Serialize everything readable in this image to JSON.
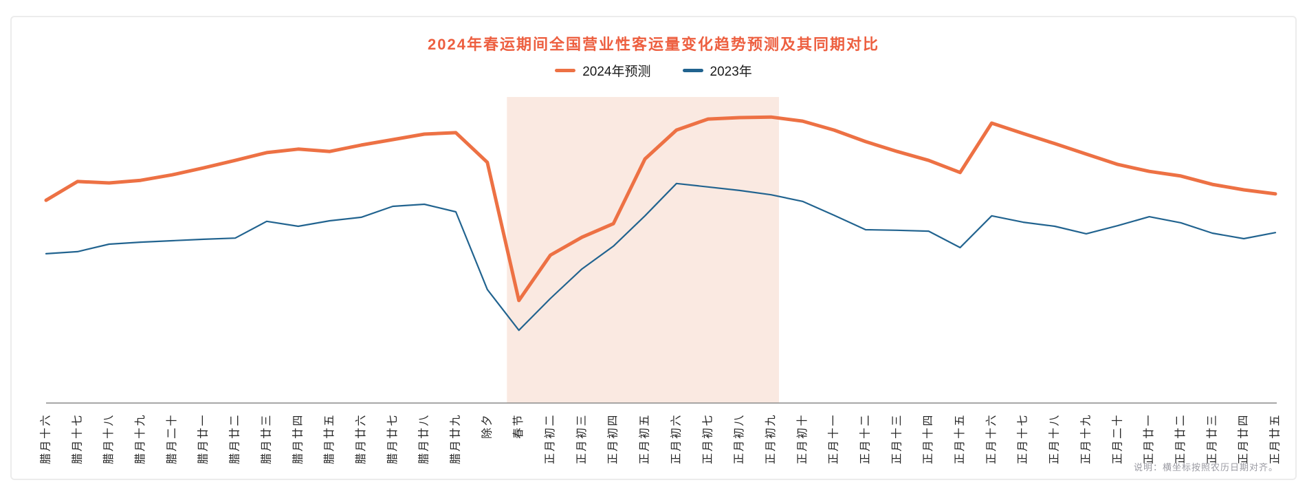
{
  "page": {
    "card_background": "#ffffff",
    "card_border_color": "#ececec"
  },
  "chart_data": {
    "type": "line",
    "title": "2024年春运期间全国营业性客运量变化趋势预测及其同期对比",
    "title_color": "#ed5f40",
    "legend_position": "top",
    "grid": false,
    "categories": [
      "腊月十六",
      "腊月十七",
      "腊月十八",
      "腊月十九",
      "腊月二十",
      "腊月廿一",
      "腊月廿二",
      "腊月廿三",
      "腊月廿四",
      "腊月廿五",
      "腊月廿六",
      "腊月廿七",
      "腊月廿八",
      "腊月廿九",
      "除夕",
      "春节",
      "正月初二",
      "正月初三",
      "正月初四",
      "正月初五",
      "正月初六",
      "正月初七",
      "正月初八",
      "正月初九",
      "正月初十",
      "正月十一",
      "正月十二",
      "正月十三",
      "正月十四",
      "正月十五",
      "正月十六",
      "正月十七",
      "正月十八",
      "正月十九",
      "正月二十",
      "正月廿一",
      "正月廿二",
      "正月廿三",
      "正月廿四",
      "正月廿五"
    ],
    "series": [
      {
        "name": "2024年预测",
        "color": "#ed7144",
        "line_width": 5,
        "values": [
          70.2,
          76.7,
          76.2,
          77.1,
          79.0,
          81.4,
          84.0,
          86.7,
          87.9,
          87.1,
          89.3,
          91.2,
          93.1,
          93.6,
          83.3,
          35.5,
          51.2,
          57.4,
          62.1,
          84.5,
          94.5,
          98.3,
          98.8,
          99.0,
          97.6,
          94.5,
          90.5,
          87.1,
          84.0,
          79.8,
          96.9,
          93.3,
          89.8,
          86.2,
          82.6,
          80.2,
          78.6,
          75.7,
          73.8,
          72.4
        ]
      },
      {
        "name": "2023年",
        "color": "#21638f",
        "line_width": 2.2,
        "values": [
          51.7,
          52.4,
          55.0,
          55.7,
          56.2,
          56.7,
          57.1,
          62.9,
          61.2,
          63.1,
          64.3,
          68.1,
          68.8,
          66.2,
          39.3,
          25.2,
          36.2,
          46.4,
          54.3,
          64.8,
          76.0,
          74.8,
          73.6,
          72.1,
          69.8,
          65.0,
          60.0,
          59.8,
          59.5,
          53.8,
          64.8,
          62.6,
          61.2,
          58.6,
          61.4,
          64.5,
          62.4,
          58.8,
          56.9,
          59.0
        ]
      }
    ],
    "y_axis": {
      "visible": false,
      "range": [
        0,
        100
      ],
      "unit": "相对指数（图中未标注数值，按曲线高度估算）"
    },
    "x_axis": {
      "label_rotation_deg": -90,
      "axis_color": "#8a8a8a",
      "label_color": "#262626"
    },
    "highlight_band": {
      "from_category": "春节",
      "to_category": "正月初九",
      "from_index": 14.62,
      "to_index": 23.25,
      "color": "#fae9e1"
    }
  },
  "footnote": {
    "text": "说明：横坐标按照农历日期对齐。",
    "color": "#9a9aa2"
  }
}
